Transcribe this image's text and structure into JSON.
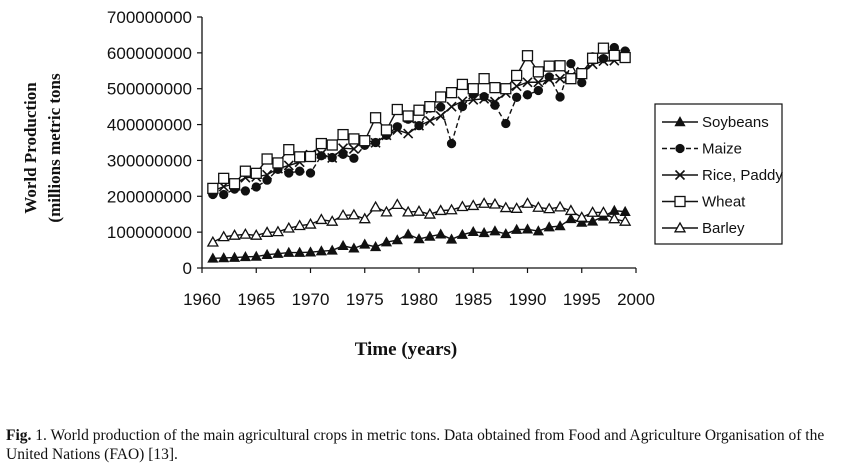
{
  "chart_data": {
    "type": "line",
    "ylabel": "World Production",
    "ylabel_units": "(millions metric tons",
    "xlabel": "Time (years)",
    "ylim": [
      0,
      700000000
    ],
    "xlim": [
      1960,
      2000
    ],
    "y_ticks": [
      "0",
      "100000000",
      "200000000",
      "300000000",
      "400000000",
      "500000000",
      "600000000",
      "700000000"
    ],
    "x_ticks": [
      "1960",
      "1965",
      "1970",
      "1975",
      "1980",
      "1985",
      "1990",
      "1995",
      "2000"
    ],
    "legend_position": "right",
    "grid": false,
    "x": [
      1961,
      1962,
      1963,
      1964,
      1965,
      1966,
      1967,
      1968,
      1969,
      1970,
      1971,
      1972,
      1973,
      1974,
      1975,
      1976,
      1977,
      1978,
      1979,
      1980,
      1981,
      1982,
      1983,
      1984,
      1985,
      1986,
      1987,
      1988,
      1989,
      1990,
      1991,
      1992,
      1993,
      1994,
      1995,
      1996,
      1997,
      1998,
      1999
    ],
    "series": [
      {
        "name": "Soybeans",
        "marker": "filled-triangle",
        "values": [
          27000000,
          28000000,
          29000000,
          31000000,
          32000000,
          37000000,
          40000000,
          43000000,
          43000000,
          44000000,
          47000000,
          49000000,
          62000000,
          55000000,
          66000000,
          59000000,
          72000000,
          78000000,
          94000000,
          81000000,
          88000000,
          94000000,
          80000000,
          93000000,
          101000000,
          98000000,
          103000000,
          95000000,
          107000000,
          108000000,
          103000000,
          114000000,
          117000000,
          137000000,
          127000000,
          130000000,
          144000000,
          160000000,
          157000000
        ]
      },
      {
        "name": "Maize",
        "marker": "filled-circle",
        "values": [
          205000000,
          205000000,
          220000000,
          215000000,
          226000000,
          245000000,
          275000000,
          265000000,
          270000000,
          265000000,
          313000000,
          308000000,
          317000000,
          306000000,
          342000000,
          350000000,
          370000000,
          394000000,
          415000000,
          397000000,
          446000000,
          449000000,
          347000000,
          450000000,
          486000000,
          478000000,
          454000000,
          403000000,
          476000000,
          483000000,
          495000000,
          533000000,
          477000000,
          570000000,
          517000000,
          589000000,
          584000000,
          615000000,
          605000000
        ]
      },
      {
        "name": "Rice, Paddy",
        "marker": "x",
        "values": [
          215000000,
          227000000,
          235000000,
          252000000,
          254000000,
          260000000,
          277000000,
          286000000,
          295000000,
          316000000,
          318000000,
          307000000,
          334000000,
          332000000,
          357000000,
          349000000,
          370000000,
          385000000,
          375000000,
          397000000,
          410000000,
          424000000,
          450000000,
          465000000,
          469000000,
          472000000,
          464000000,
          488000000,
          507000000,
          518000000,
          518000000,
          526000000,
          528000000,
          535000000,
          547000000,
          568000000,
          577000000,
          578000000,
          596000000
        ]
      },
      {
        "name": "Wheat",
        "marker": "open-square",
        "values": [
          222000000,
          250000000,
          235000000,
          270000000,
          264000000,
          304000000,
          293000000,
          330000000,
          310000000,
          311000000,
          347000000,
          343000000,
          372000000,
          360000000,
          355000000,
          419000000,
          385000000,
          442000000,
          424000000,
          440000000,
          450000000,
          477000000,
          489000000,
          512000000,
          500000000,
          528000000,
          503000000,
          500000000,
          537000000,
          592000000,
          547000000,
          563000000,
          564000000,
          528000000,
          542000000,
          585000000,
          613000000,
          593000000,
          587000000
        ]
      },
      {
        "name": "Barley",
        "marker": "open-triangle",
        "values": [
          72000000,
          87000000,
          91000000,
          94000000,
          91000000,
          99000000,
          101000000,
          111000000,
          118000000,
          122000000,
          135000000,
          130000000,
          147000000,
          148000000,
          137000000,
          170000000,
          156000000,
          177000000,
          156000000,
          158000000,
          150000000,
          160000000,
          162000000,
          171000000,
          174000000,
          180000000,
          178000000,
          168000000,
          166000000,
          180000000,
          169000000,
          165000000,
          170000000,
          160000000,
          141000000,
          155000000,
          155000000,
          137000000,
          130000000
        ]
      }
    ]
  },
  "caption": {
    "label": "Fig.",
    "text": " 1. World production of the main agricultural crops in metric tons. Data obtained from Food and Agriculture Organisation of the United Nations (FAO) [13]."
  }
}
